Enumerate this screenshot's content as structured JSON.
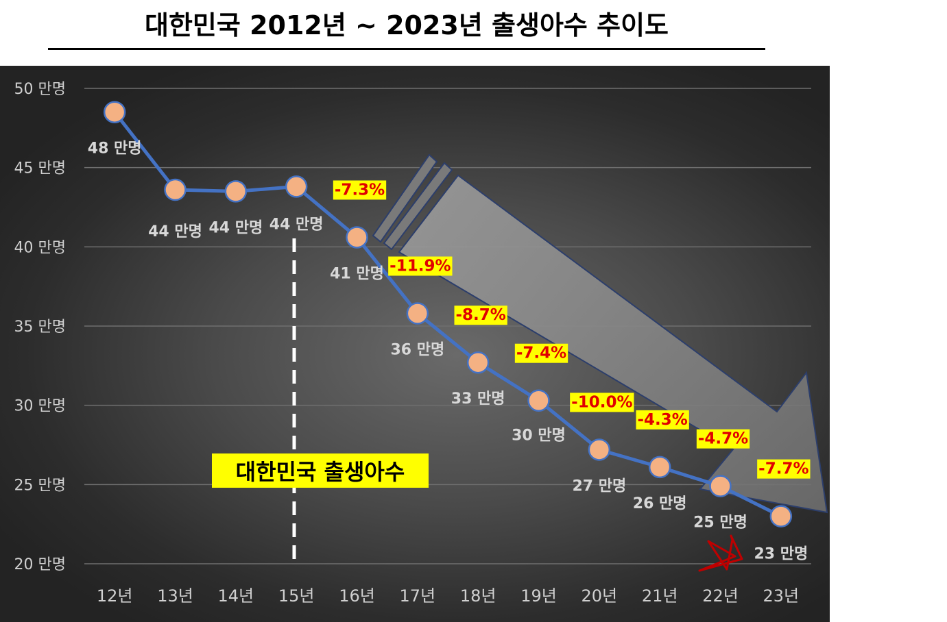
{
  "page": {
    "title": "대한민국 2012년 ~ 2023년 출생아수 추이도"
  },
  "chart_data": {
    "type": "line",
    "title": "대한민국 2012년 ~ 2023년 출생아수 추이도",
    "categories": [
      "12년",
      "13년",
      "14년",
      "15년",
      "16년",
      "17년",
      "18년",
      "19년",
      "20년",
      "21년",
      "22년",
      "23년"
    ],
    "series": [
      {
        "name": "대한민국 출생아수",
        "values": [
          48.5,
          43.6,
          43.5,
          43.8,
          40.6,
          35.8,
          32.7,
          30.3,
          27.2,
          26.1,
          24.9,
          23.0
        ],
        "data_labels": [
          "48 만명",
          "44 만명",
          "44 만명",
          "44 만명",
          "41 만명",
          "36 만명",
          "33 만명",
          "30 만명",
          "27 만명",
          "26 만명",
          "25 만명",
          "23 만명"
        ]
      }
    ],
    "change_labels": [
      null,
      null,
      null,
      null,
      "-7.3%",
      "-11.9%",
      "-8.7%",
      "-7.4%",
      "-10.0%",
      "-4.3%",
      "-4.7%",
      "-7.7%"
    ],
    "y_ticks": [
      {
        "value": 20,
        "label": "20 만명"
      },
      {
        "value": 25,
        "label": "25 만명"
      },
      {
        "value": 30,
        "label": "30 만명"
      },
      {
        "value": 35,
        "label": "35 만명"
      },
      {
        "value": 40,
        "label": "40 만명"
      },
      {
        "value": 45,
        "label": "45 만명"
      },
      {
        "value": 50,
        "label": "50 만명"
      }
    ],
    "ylim": [
      20,
      50
    ],
    "xlabel": "",
    "ylabel": "",
    "grid": true,
    "marker_line_category": "15년",
    "colors": {
      "line": "#4472c4",
      "marker_fill": "#f4b183",
      "marker_stroke": "#4472c4",
      "label_highlight": "#ffff00",
      "change_text": "#e00000",
      "grid": "#6f6f6f",
      "star": "#c00000",
      "arrow": "#8c8c8c"
    },
    "annotations": {
      "trend_arrow_icon": "down-right-arrow-icon",
      "star_icon": "star-icon"
    }
  }
}
